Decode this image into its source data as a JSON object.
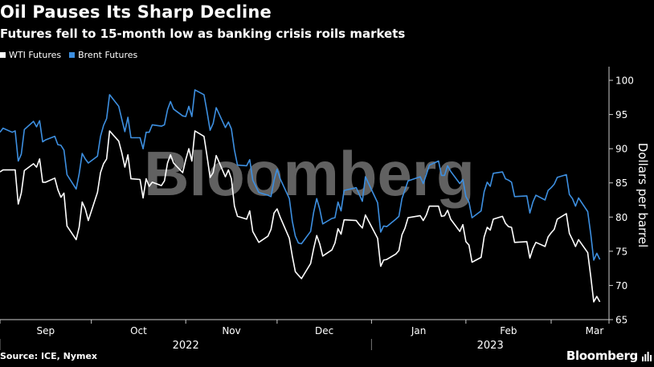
{
  "header": {
    "title": "Oil Pauses Its Sharp Decline",
    "subtitle": "Futures fell to 15-month low as banking crisis roils markets"
  },
  "legend": [
    {
      "label": "WTI Futures",
      "color": "#ffffff"
    },
    {
      "label": "Brent Futures",
      "color": "#3d8fe0"
    }
  ],
  "footer": {
    "source": "Source: ICE, Nymex",
    "brand": "Bloomberg"
  },
  "watermark": "Bloomberg",
  "chart_data": {
    "type": "line",
    "title": "Oil Pauses Its Sharp Decline",
    "subtitle": "Futures fell to 15-month low as banking crisis roils markets",
    "ylabel": "Dollars per barrel",
    "ylim": [
      65,
      102
    ],
    "yticks": [
      65,
      70,
      75,
      80,
      85,
      90,
      95,
      100
    ],
    "x_months": [
      "Sep",
      "Oct",
      "Nov",
      "Dec",
      "Jan",
      "Feb",
      "Mar"
    ],
    "x_years": [
      "2022",
      "2023"
    ],
    "x_range": [
      "2022-09-01",
      "2023-03-20"
    ],
    "grid": false,
    "legend_position": "top-left",
    "series": [
      {
        "name": "WTI Futures",
        "color": "#ffffff",
        "points": [
          [
            "2022-09-01",
            86.6
          ],
          [
            "2022-09-02",
            86.9
          ],
          [
            "2022-09-05",
            86.9
          ],
          [
            "2022-09-06",
            86.9
          ],
          [
            "2022-09-07",
            81.9
          ],
          [
            "2022-09-08",
            83.5
          ],
          [
            "2022-09-09",
            86.8
          ],
          [
            "2022-09-12",
            87.8
          ],
          [
            "2022-09-13",
            87.3
          ],
          [
            "2022-09-14",
            88.5
          ],
          [
            "2022-09-15",
            85.1
          ],
          [
            "2022-09-16",
            85.1
          ],
          [
            "2022-09-19",
            85.7
          ],
          [
            "2022-09-20",
            84.0
          ],
          [
            "2022-09-21",
            82.9
          ],
          [
            "2022-09-22",
            83.5
          ],
          [
            "2022-09-23",
            78.7
          ],
          [
            "2022-09-26",
            76.7
          ],
          [
            "2022-09-27",
            78.5
          ],
          [
            "2022-09-28",
            82.2
          ],
          [
            "2022-09-29",
            81.2
          ],
          [
            "2022-09-30",
            79.5
          ],
          [
            "2022-10-03",
            83.6
          ],
          [
            "2022-10-04",
            86.5
          ],
          [
            "2022-10-05",
            87.8
          ],
          [
            "2022-10-06",
            88.5
          ],
          [
            "2022-10-07",
            92.6
          ],
          [
            "2022-10-10",
            91.1
          ],
          [
            "2022-10-11",
            89.4
          ],
          [
            "2022-10-12",
            87.3
          ],
          [
            "2022-10-13",
            89.1
          ],
          [
            "2022-10-14",
            85.6
          ],
          [
            "2022-10-17",
            85.5
          ],
          [
            "2022-10-18",
            82.8
          ],
          [
            "2022-10-19",
            85.6
          ],
          [
            "2022-10-20",
            84.5
          ],
          [
            "2022-10-21",
            85.1
          ],
          [
            "2022-10-24",
            84.6
          ],
          [
            "2022-10-25",
            85.3
          ],
          [
            "2022-10-26",
            87.9
          ],
          [
            "2022-10-27",
            89.1
          ],
          [
            "2022-10-28",
            87.9
          ],
          [
            "2022-10-31",
            86.5
          ],
          [
            "2022-11-01",
            88.4
          ],
          [
            "2022-11-02",
            90.0
          ],
          [
            "2022-11-03",
            88.2
          ],
          [
            "2022-11-04",
            92.6
          ],
          [
            "2022-11-07",
            91.8
          ],
          [
            "2022-11-08",
            88.9
          ],
          [
            "2022-11-09",
            85.8
          ],
          [
            "2022-11-10",
            86.5
          ],
          [
            "2022-11-11",
            89.0
          ],
          [
            "2022-11-14",
            85.9
          ],
          [
            "2022-11-15",
            86.9
          ],
          [
            "2022-11-16",
            85.6
          ],
          [
            "2022-11-17",
            81.6
          ],
          [
            "2022-11-18",
            80.1
          ],
          [
            "2022-11-21",
            79.7
          ],
          [
            "2022-11-22",
            80.9
          ],
          [
            "2022-11-23",
            77.9
          ],
          [
            "2022-11-25",
            76.3
          ],
          [
            "2022-11-28",
            77.2
          ],
          [
            "2022-11-29",
            78.2
          ],
          [
            "2022-11-30",
            80.6
          ],
          [
            "2022-12-01",
            81.2
          ],
          [
            "2022-12-02",
            80.0
          ],
          [
            "2022-12-05",
            76.9
          ],
          [
            "2022-12-06",
            74.3
          ],
          [
            "2022-12-07",
            72.0
          ],
          [
            "2022-12-08",
            71.5
          ],
          [
            "2022-12-09",
            71.0
          ],
          [
            "2022-12-12",
            73.2
          ],
          [
            "2022-12-13",
            75.4
          ],
          [
            "2022-12-14",
            77.3
          ],
          [
            "2022-12-15",
            76.1
          ],
          [
            "2022-12-16",
            74.3
          ],
          [
            "2022-12-19",
            75.2
          ],
          [
            "2022-12-20",
            76.2
          ],
          [
            "2022-12-21",
            78.3
          ],
          [
            "2022-12-22",
            77.5
          ],
          [
            "2022-12-23",
            79.6
          ],
          [
            "2022-12-27",
            79.5
          ],
          [
            "2022-12-28",
            78.9
          ],
          [
            "2022-12-29",
            78.4
          ],
          [
            "2022-12-30",
            80.3
          ],
          [
            "2023-01-03",
            76.9
          ],
          [
            "2023-01-04",
            72.8
          ],
          [
            "2023-01-05",
            73.7
          ],
          [
            "2023-01-06",
            73.8
          ],
          [
            "2023-01-09",
            74.6
          ],
          [
            "2023-01-10",
            75.1
          ],
          [
            "2023-01-11",
            77.4
          ],
          [
            "2023-01-12",
            78.4
          ],
          [
            "2023-01-13",
            79.9
          ],
          [
            "2023-01-17",
            80.2
          ],
          [
            "2023-01-18",
            79.5
          ],
          [
            "2023-01-19",
            80.3
          ],
          [
            "2023-01-20",
            81.6
          ],
          [
            "2023-01-23",
            81.6
          ],
          [
            "2023-01-24",
            80.1
          ],
          [
            "2023-01-25",
            80.2
          ],
          [
            "2023-01-26",
            81.0
          ],
          [
            "2023-01-27",
            79.7
          ],
          [
            "2023-01-30",
            77.9
          ],
          [
            "2023-01-31",
            78.9
          ],
          [
            "2023-02-01",
            76.4
          ],
          [
            "2023-02-02",
            75.9
          ],
          [
            "2023-02-03",
            73.4
          ],
          [
            "2023-02-06",
            74.1
          ],
          [
            "2023-02-07",
            77.1
          ],
          [
            "2023-02-08",
            78.5
          ],
          [
            "2023-02-09",
            78.1
          ],
          [
            "2023-02-10",
            79.7
          ],
          [
            "2023-02-13",
            80.1
          ],
          [
            "2023-02-14",
            79.1
          ],
          [
            "2023-02-15",
            78.6
          ],
          [
            "2023-02-16",
            78.5
          ],
          [
            "2023-02-17",
            76.3
          ],
          [
            "2023-02-21",
            76.4
          ],
          [
            "2023-02-22",
            74.0
          ],
          [
            "2023-02-23",
            75.4
          ],
          [
            "2023-02-24",
            76.3
          ],
          [
            "2023-02-27",
            75.7
          ],
          [
            "2023-02-28",
            77.1
          ],
          [
            "2023-03-01",
            77.7
          ],
          [
            "2023-03-02",
            78.2
          ],
          [
            "2023-03-03",
            79.7
          ],
          [
            "2023-03-06",
            80.5
          ],
          [
            "2023-03-07",
            77.6
          ],
          [
            "2023-03-08",
            76.7
          ],
          [
            "2023-03-09",
            75.7
          ],
          [
            "2023-03-10",
            76.7
          ],
          [
            "2023-03-13",
            74.8
          ],
          [
            "2023-03-14",
            71.3
          ],
          [
            "2023-03-15",
            67.6
          ],
          [
            "2023-03-16",
            68.4
          ],
          [
            "2023-03-17",
            67.6
          ]
        ]
      },
      {
        "name": "Brent Futures",
        "color": "#3d8fe0",
        "points": [
          [
            "2022-09-01",
            92.4
          ],
          [
            "2022-09-02",
            93.0
          ],
          [
            "2022-09-05",
            92.4
          ],
          [
            "2022-09-06",
            92.6
          ],
          [
            "2022-09-07",
            88.2
          ],
          [
            "2022-09-08",
            89.2
          ],
          [
            "2022-09-09",
            92.8
          ],
          [
            "2022-09-12",
            94.0
          ],
          [
            "2022-09-13",
            93.2
          ],
          [
            "2022-09-14",
            94.1
          ],
          [
            "2022-09-15",
            91.0
          ],
          [
            "2022-09-16",
            91.3
          ],
          [
            "2022-09-19",
            91.8
          ],
          [
            "2022-09-20",
            90.6
          ],
          [
            "2022-09-21",
            90.5
          ],
          [
            "2022-09-22",
            89.8
          ],
          [
            "2022-09-23",
            86.2
          ],
          [
            "2022-09-26",
            84.1
          ],
          [
            "2022-09-27",
            86.3
          ],
          [
            "2022-09-28",
            89.3
          ],
          [
            "2022-09-29",
            88.5
          ],
          [
            "2022-09-30",
            87.9
          ],
          [
            "2022-10-03",
            88.9
          ],
          [
            "2022-10-04",
            91.8
          ],
          [
            "2022-10-05",
            93.4
          ],
          [
            "2022-10-06",
            94.4
          ],
          [
            "2022-10-07",
            97.9
          ],
          [
            "2022-10-10",
            96.2
          ],
          [
            "2022-10-11",
            94.3
          ],
          [
            "2022-10-12",
            92.5
          ],
          [
            "2022-10-13",
            94.6
          ],
          [
            "2022-10-14",
            91.6
          ],
          [
            "2022-10-17",
            91.6
          ],
          [
            "2022-10-18",
            90.0
          ],
          [
            "2022-10-19",
            92.4
          ],
          [
            "2022-10-20",
            92.4
          ],
          [
            "2022-10-21",
            93.5
          ],
          [
            "2022-10-24",
            93.3
          ],
          [
            "2022-10-25",
            93.5
          ],
          [
            "2022-10-26",
            95.7
          ],
          [
            "2022-10-27",
            96.9
          ],
          [
            "2022-10-28",
            95.8
          ],
          [
            "2022-10-31",
            94.8
          ],
          [
            "2022-11-01",
            94.7
          ],
          [
            "2022-11-02",
            96.2
          ],
          [
            "2022-11-03",
            94.7
          ],
          [
            "2022-11-04",
            98.6
          ],
          [
            "2022-11-07",
            97.9
          ],
          [
            "2022-11-08",
            95.4
          ],
          [
            "2022-11-09",
            92.7
          ],
          [
            "2022-11-10",
            93.7
          ],
          [
            "2022-11-11",
            96.0
          ],
          [
            "2022-11-14",
            93.1
          ],
          [
            "2022-11-15",
            93.9
          ],
          [
            "2022-11-16",
            92.9
          ],
          [
            "2022-11-17",
            89.8
          ],
          [
            "2022-11-18",
            87.6
          ],
          [
            "2022-11-21",
            87.5
          ],
          [
            "2022-11-22",
            88.4
          ],
          [
            "2022-11-23",
            85.4
          ],
          [
            "2022-11-25",
            83.6
          ],
          [
            "2022-11-28",
            83.2
          ],
          [
            "2022-11-29",
            83.0
          ],
          [
            "2022-11-30",
            85.4
          ],
          [
            "2022-12-01",
            87.0
          ],
          [
            "2022-12-02",
            85.6
          ],
          [
            "2022-12-05",
            82.7
          ],
          [
            "2022-12-06",
            79.4
          ],
          [
            "2022-12-07",
            77.2
          ],
          [
            "2022-12-08",
            76.2
          ],
          [
            "2022-12-09",
            76.1
          ],
          [
            "2022-12-12",
            77.9
          ],
          [
            "2022-12-13",
            80.7
          ],
          [
            "2022-12-14",
            82.7
          ],
          [
            "2022-12-15",
            81.2
          ],
          [
            "2022-12-16",
            79.0
          ],
          [
            "2022-12-19",
            79.8
          ],
          [
            "2022-12-20",
            79.9
          ],
          [
            "2022-12-21",
            82.2
          ],
          [
            "2022-12-22",
            80.9
          ],
          [
            "2022-12-23",
            83.9
          ],
          [
            "2022-12-27",
            84.3
          ],
          [
            "2022-12-28",
            83.3
          ],
          [
            "2022-12-29",
            82.3
          ],
          [
            "2022-12-30",
            85.9
          ],
          [
            "2023-01-03",
            82.1
          ],
          [
            "2023-01-04",
            77.8
          ],
          [
            "2023-01-05",
            78.7
          ],
          [
            "2023-01-06",
            78.6
          ],
          [
            "2023-01-09",
            79.7
          ],
          [
            "2023-01-10",
            80.1
          ],
          [
            "2023-01-11",
            82.7
          ],
          [
            "2023-01-12",
            84.0
          ],
          [
            "2023-01-13",
            85.3
          ],
          [
            "2023-01-17",
            85.9
          ],
          [
            "2023-01-18",
            84.9
          ],
          [
            "2023-01-19",
            86.2
          ],
          [
            "2023-01-20",
            87.6
          ],
          [
            "2023-01-23",
            88.2
          ],
          [
            "2023-01-24",
            86.1
          ],
          [
            "2023-01-25",
            86.1
          ],
          [
            "2023-01-26",
            87.5
          ],
          [
            "2023-01-27",
            86.7
          ],
          [
            "2023-01-30",
            84.9
          ],
          [
            "2023-01-31",
            85.5
          ],
          [
            "2023-02-01",
            83.0
          ],
          [
            "2023-02-02",
            82.2
          ],
          [
            "2023-02-03",
            79.9
          ],
          [
            "2023-02-06",
            80.9
          ],
          [
            "2023-02-07",
            83.7
          ],
          [
            "2023-02-08",
            85.1
          ],
          [
            "2023-02-09",
            84.5
          ],
          [
            "2023-02-10",
            86.4
          ],
          [
            "2023-02-13",
            86.6
          ],
          [
            "2023-02-14",
            85.6
          ],
          [
            "2023-02-15",
            85.4
          ],
          [
            "2023-02-16",
            85.1
          ],
          [
            "2023-02-17",
            83.0
          ],
          [
            "2023-02-21",
            83.1
          ],
          [
            "2023-02-22",
            80.6
          ],
          [
            "2023-02-23",
            82.2
          ],
          [
            "2023-02-24",
            83.2
          ],
          [
            "2023-02-27",
            82.5
          ],
          [
            "2023-02-28",
            83.9
          ],
          [
            "2023-03-01",
            84.3
          ],
          [
            "2023-03-02",
            84.8
          ],
          [
            "2023-03-03",
            85.8
          ],
          [
            "2023-03-06",
            86.2
          ],
          [
            "2023-03-07",
            83.3
          ],
          [
            "2023-03-08",
            82.7
          ],
          [
            "2023-03-09",
            81.6
          ],
          [
            "2023-03-10",
            82.8
          ],
          [
            "2023-03-13",
            80.8
          ],
          [
            "2023-03-14",
            77.5
          ],
          [
            "2023-03-15",
            73.7
          ],
          [
            "2023-03-16",
            74.7
          ],
          [
            "2023-03-17",
            73.8
          ]
        ]
      }
    ]
  }
}
